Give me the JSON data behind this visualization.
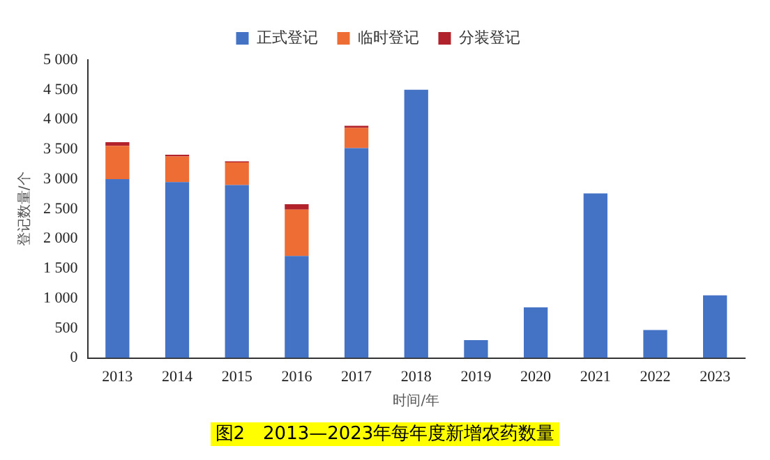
{
  "chart_data": {
    "type": "bar",
    "title": "图2　2013—2023年每年度新增农药数量",
    "xlabel": "时间/年",
    "ylabel": "登记数量/个",
    "categories": [
      "2013",
      "2014",
      "2015",
      "2016",
      "2017",
      "2018",
      "2019",
      "2020",
      "2021",
      "2022",
      "2023"
    ],
    "series": [
      {
        "name": "正式登记",
        "color": "#4472c4",
        "values": [
          3000,
          2950,
          2900,
          1710,
          3520,
          4500,
          300,
          850,
          2760,
          470,
          1050
        ]
      },
      {
        "name": "临时登记",
        "color": "#ed6d35",
        "values": [
          560,
          430,
          380,
          780,
          340,
          null,
          null,
          null,
          null,
          null,
          null
        ]
      },
      {
        "name": "分装登记",
        "color": "#b2222a",
        "values": [
          60,
          30,
          20,
          90,
          35,
          null,
          null,
          null,
          null,
          null,
          null
        ]
      }
    ],
    "stacked": true,
    "ylim": [
      0,
      5000
    ],
    "yticks": [
      0,
      500,
      {
        "value": 1000,
        "label": "1 000"
      },
      {
        "value": 1500,
        "label": "1 500"
      },
      {
        "value": 2000,
        "label": "2 000"
      },
      {
        "value": 2500,
        "label": "2 500"
      },
      {
        "value": 3000,
        "label": "3 000"
      },
      {
        "value": 3500,
        "label": "3 500"
      },
      {
        "value": 4000,
        "label": "4 000"
      },
      {
        "value": 4500,
        "label": "4 500"
      },
      {
        "value": 5000,
        "label": "5 000"
      }
    ],
    "grid": false,
    "legend": "top"
  }
}
